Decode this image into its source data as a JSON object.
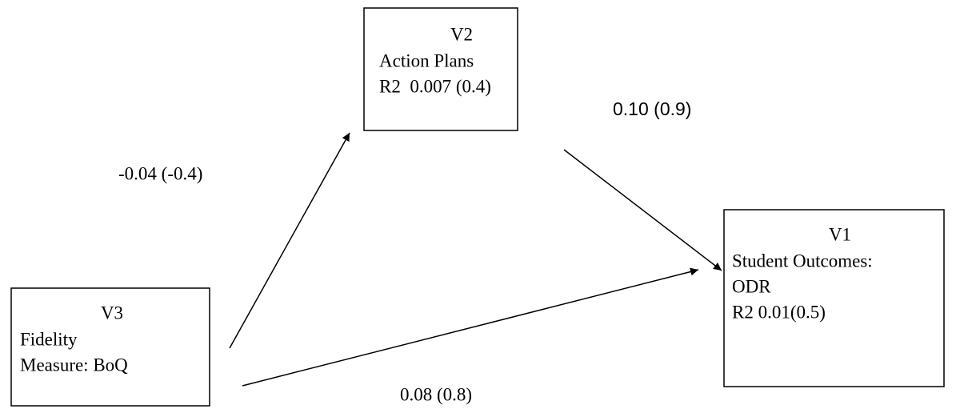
{
  "nodes": [
    {
      "id": "V2",
      "lines": [
        "Action Plans",
        "R2  0.007 (0.4)"
      ]
    },
    {
      "id": "V1",
      "lines": [
        "Student Outcomes:",
        "ODR",
        "R2 0.01(0.5)"
      ]
    },
    {
      "id": "V3",
      "lines": [
        "Fidelity",
        "Measure: BoQ"
      ]
    }
  ],
  "edges": [
    {
      "label": "-0.04 (-0.4)"
    },
    {
      "label": "0.10 (0.9)"
    },
    {
      "label": "0.08 (0.8)"
    }
  ]
}
